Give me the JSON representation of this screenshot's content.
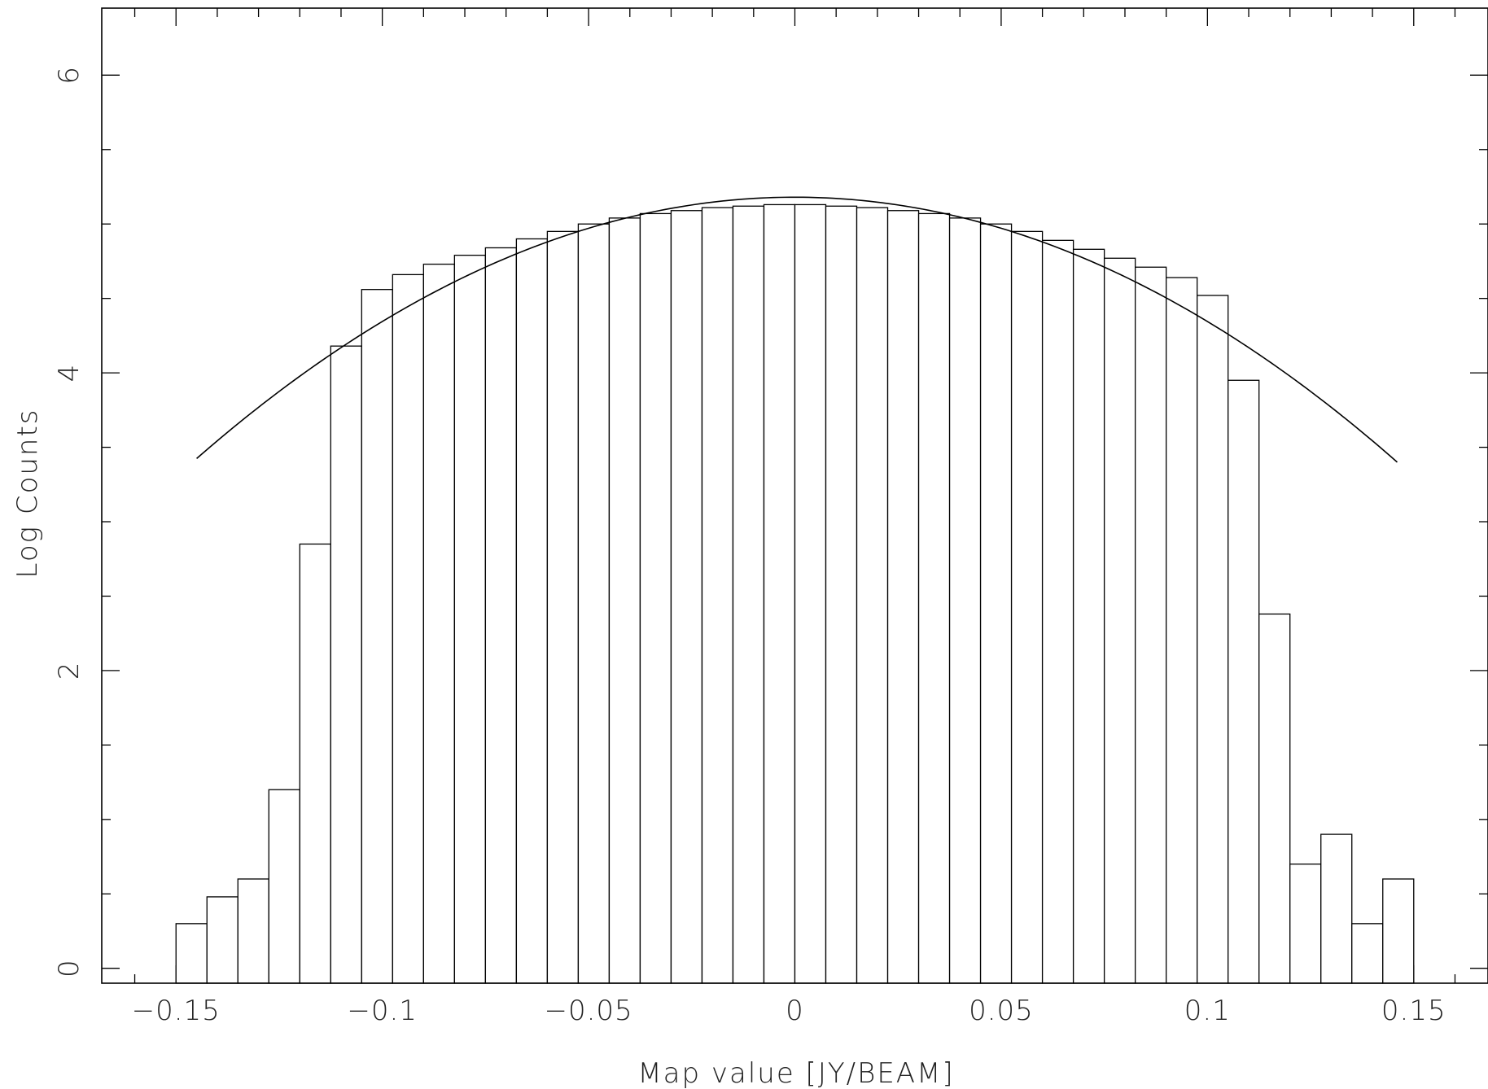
{
  "chart_data": {
    "type": "bar",
    "title": "",
    "xlabel": "Map value [JY/BEAM]",
    "ylabel": "Log Counts",
    "xlim": [
      -0.168,
      0.168
    ],
    "ylim": [
      -0.1,
      6.45
    ],
    "grid": false,
    "xticks": [
      -0.15,
      -0.1,
      -0.05,
      0,
      0.05,
      0.1,
      0.15
    ],
    "xtick_labels": [
      "−0.15",
      "−0.1",
      "−0.05",
      "0",
      "0.05",
      "0.1",
      "0.15"
    ],
    "yticks": [
      0,
      2,
      4,
      6
    ],
    "ytick_labels": [
      "0",
      "2",
      "4",
      "6"
    ],
    "bins": {
      "edges": [
        -0.15,
        -0.1425,
        -0.135,
        -0.1275,
        -0.12,
        -0.1125,
        -0.105,
        -0.0975,
        -0.09,
        -0.0825,
        -0.075,
        -0.0675,
        -0.06,
        -0.0525,
        -0.045,
        -0.0375,
        -0.03,
        -0.0225,
        -0.015,
        -0.0075,
        0.0,
        0.0075,
        0.015,
        0.0225,
        0.03,
        0.0375,
        0.045,
        0.0525,
        0.06,
        0.0675,
        0.075,
        0.0825,
        0.09,
        0.0975,
        0.105,
        0.1125,
        0.12,
        0.1275,
        0.135,
        0.1425,
        0.15
      ],
      "values": [
        0.3,
        0.48,
        0.6,
        1.2,
        2.85,
        4.18,
        4.56,
        4.66,
        4.73,
        4.79,
        4.84,
        4.9,
        4.95,
        5.0,
        5.04,
        5.07,
        5.09,
        5.11,
        5.12,
        5.13,
        5.13,
        5.12,
        5.11,
        5.09,
        5.07,
        5.04,
        5.0,
        4.95,
        4.89,
        4.83,
        4.77,
        4.71,
        4.64,
        4.52,
        3.95,
        2.38,
        0.7,
        0.9,
        0.3,
        0.6
      ]
    },
    "fit_curve": {
      "type": "gaussian-log",
      "peak": 5.18,
      "center": 0.0,
      "x_range": [
        -0.145,
        0.146
      ],
      "value_at_ends": 3.4
    }
  }
}
